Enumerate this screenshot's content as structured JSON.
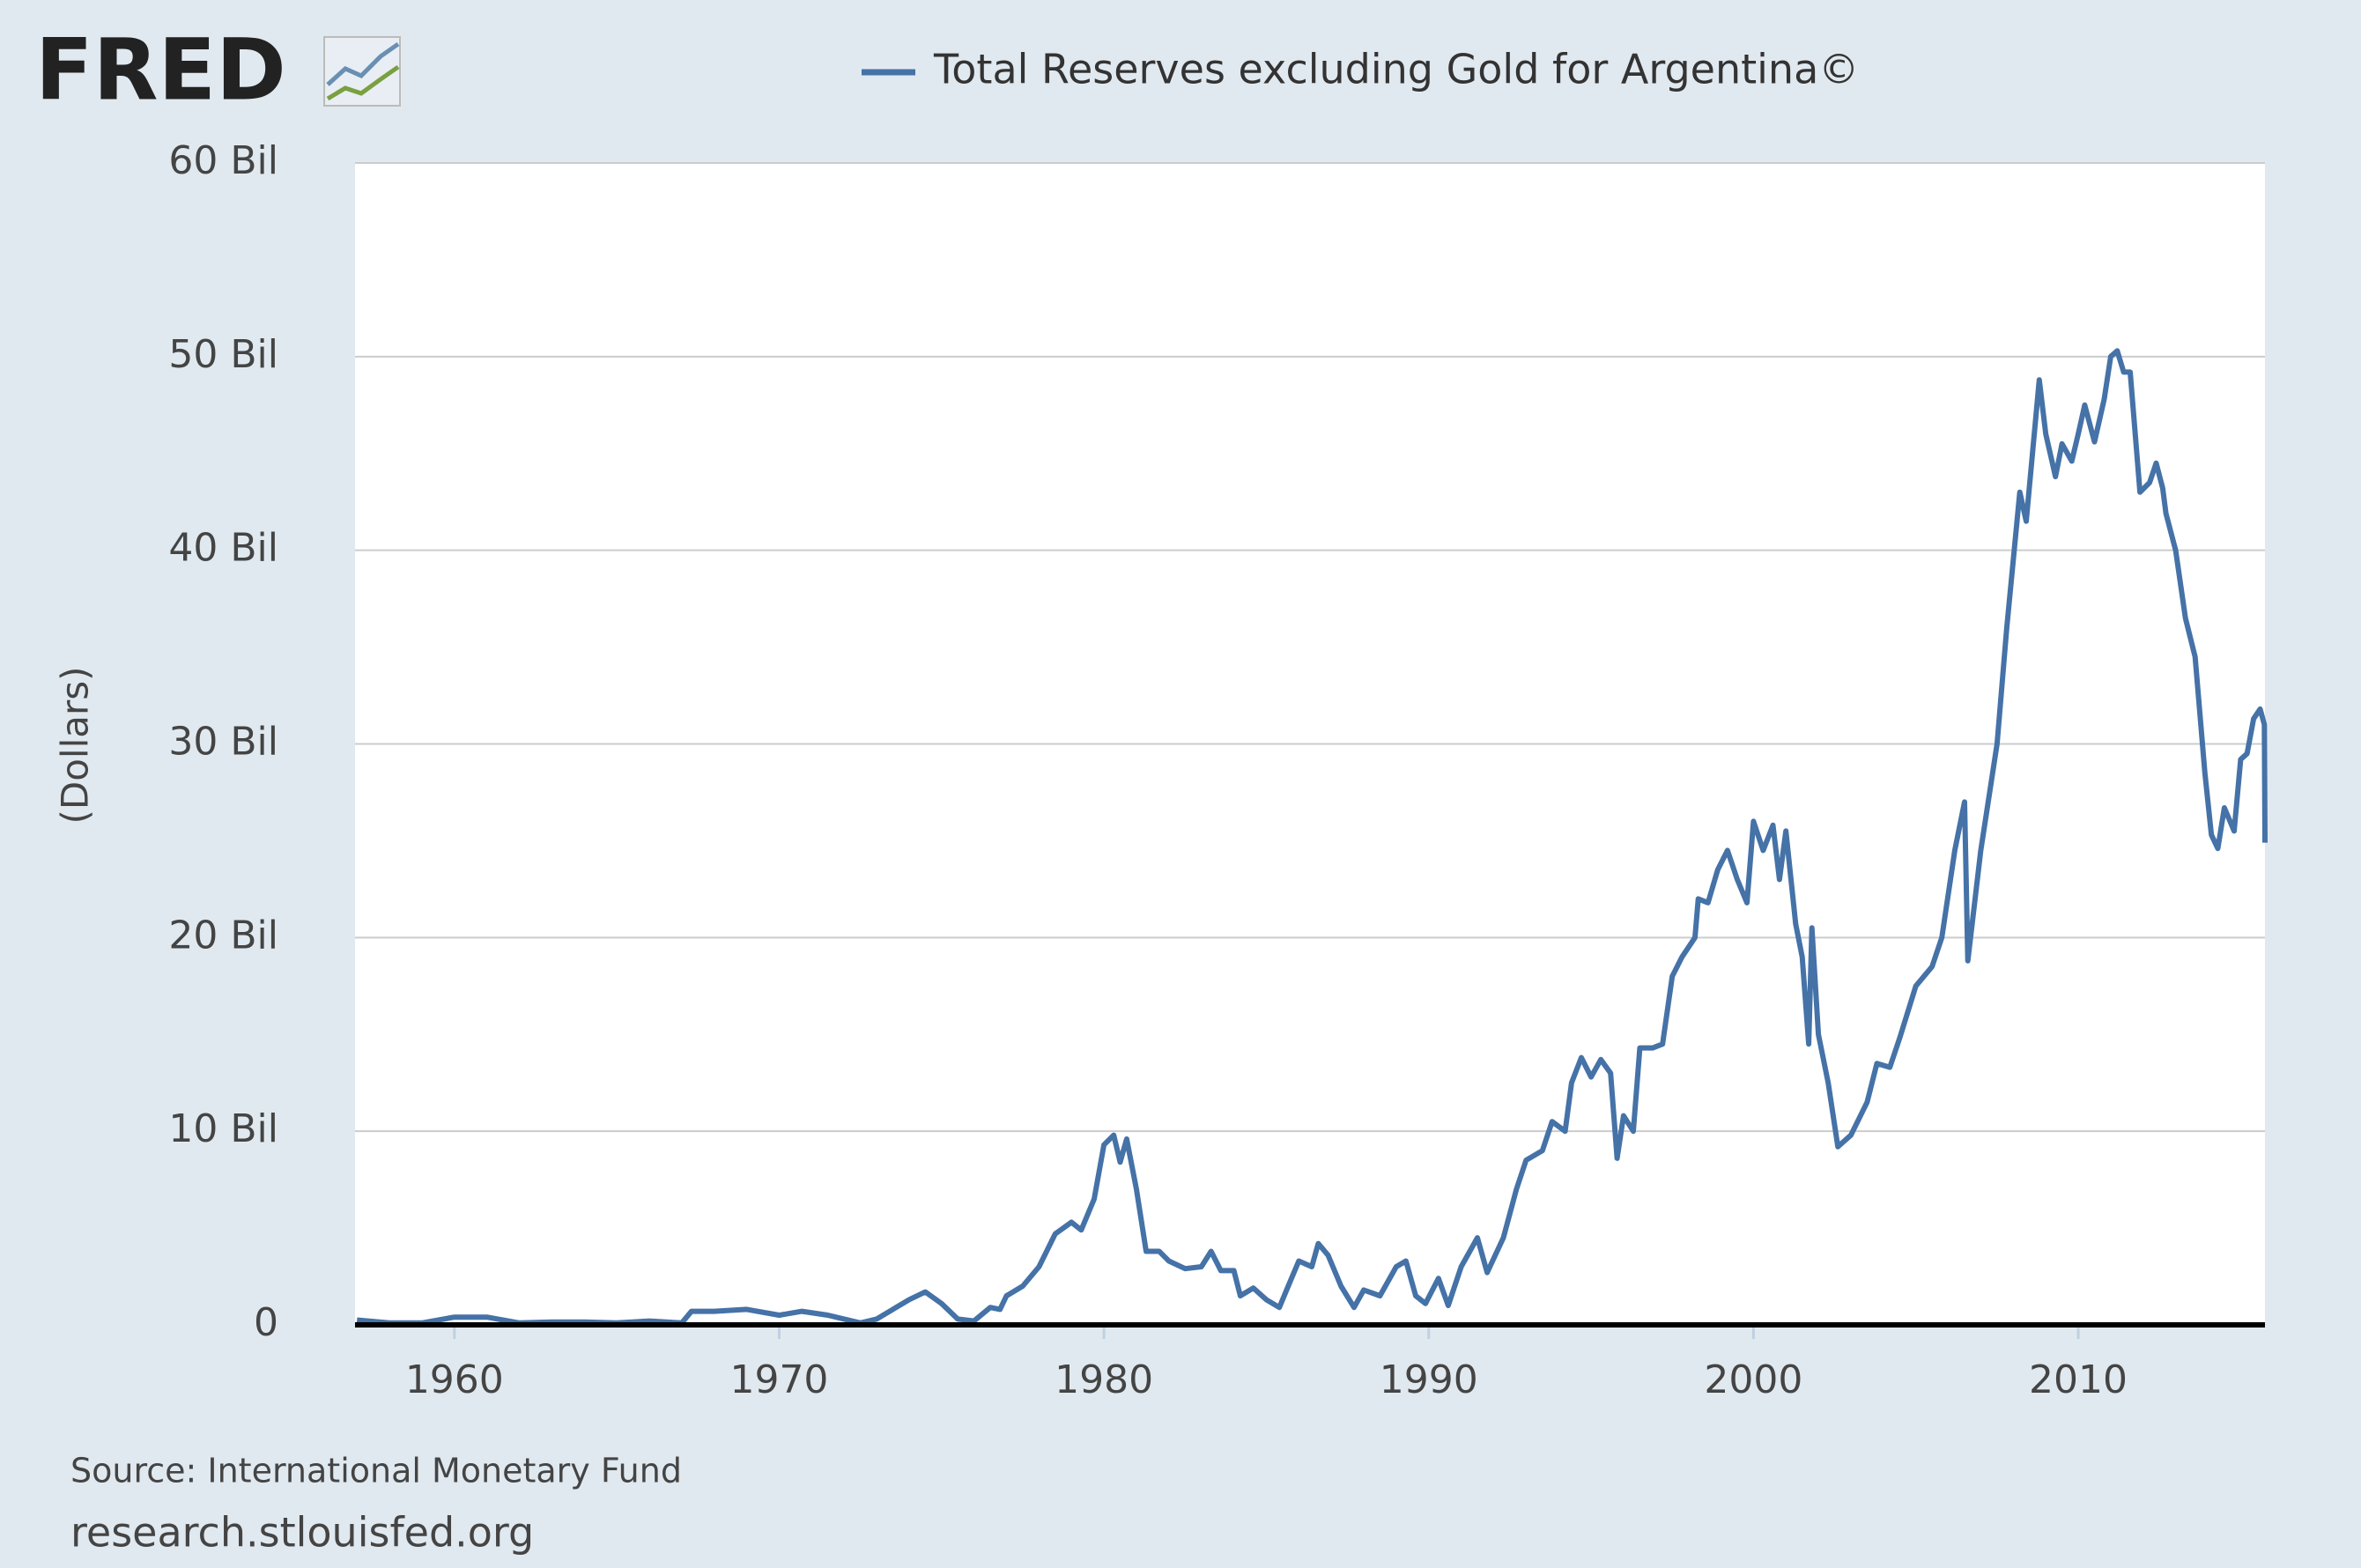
{
  "logo": "FRED",
  "chart_data": {
    "type": "line",
    "y_label": "(Dollars)",
    "source": "Source: International Monetary Fund",
    "url": "research.stlouisfed.org",
    "xlim": [
      1956.94,
      2015.75
    ],
    "xticks": [
      1960,
      1970,
      1980,
      1990,
      2000,
      2010
    ],
    "ylim": [
      0,
      60
    ],
    "yticks": [
      0,
      {
        "value": 10,
        "label": "10 Bil"
      },
      {
        "value": 20,
        "label": "20 Bil"
      },
      {
        "value": 30,
        "label": "30 Bil"
      },
      {
        "value": 40,
        "label": "40 Bil"
      },
      {
        "value": 50,
        "label": "50 Bil"
      },
      {
        "value": 60,
        "label": "60 Bil"
      }
    ],
    "grid": true,
    "x": [
      1957,
      1958,
      1959,
      1960,
      1961,
      1962,
      1963,
      1964,
      1965,
      1966,
      1967,
      1967.3,
      1968,
      1969,
      1970,
      1970.7,
      1971.5,
      1972,
      1972.5,
      1973,
      1973.5,
      1974,
      1974.5,
      1975,
      1975.5,
      1976,
      1976.5,
      1976.8,
      1977,
      1977.5,
      1978,
      1978.5,
      1979,
      1979.3,
      1979.7,
      1980,
      1980.3,
      1980.5,
      1980.7,
      1981,
      1981.3,
      1981.7,
      1982,
      1982.5,
      1983,
      1983.3,
      1983.6,
      1984,
      1984.2,
      1984.6,
      1985,
      1985.4,
      1985.7,
      1986,
      1986.4,
      1986.6,
      1986.9,
      1987.3,
      1987.7,
      1988,
      1988.5,
      1989,
      1989.3,
      1989.6,
      1989.9,
      1990.3,
      1990.6,
      1991,
      1991.5,
      1991.8,
      1992.3,
      1992.7,
      1993,
      1993.5,
      1993.8,
      1994.2,
      1994.4,
      1994.7,
      1995,
      1995.3,
      1995.6,
      1995.8,
      1996,
      1996.3,
      1996.5,
      1996.9,
      1997.2,
      1997.5,
      1997.8,
      1998.2,
      1998.3,
      1998.6,
      1998.9,
      1999.2,
      1999.5,
      1999.8,
      2000,
      2000.3,
      2000.6,
      2000.8,
      2001,
      2001.3,
      2001.5,
      2001.7,
      2001.8,
      2002,
      2002.3,
      2002.6,
      2003,
      2003.5,
      2003.8,
      2004.2,
      2004.5,
      2005,
      2005.5,
      2005.8,
      2006.2,
      2006.5,
      2006.6,
      2007,
      2007.5,
      2007.8,
      2008.2,
      2008.4,
      2008.8,
      2009,
      2009.3,
      2009.5,
      2009.8,
      2010,
      2010.2,
      2010.5,
      2010.8,
      2011,
      2011.2,
      2011.4,
      2011.6,
      2011.9,
      2012.2,
      2012.4,
      2012.6,
      2012.7,
      2013,
      2013.3,
      2013.6,
      2013.9,
      2014.1,
      2014.3,
      2014.5,
      2014.8,
      2015,
      2015.2,
      2015.4,
      2015.6,
      2015.73,
      2015.75
    ],
    "series": [
      {
        "name": "Total Reserves excluding Gold for Argentina©",
        "color": "#4572a7",
        "values": [
          0.25,
          0.1,
          0.1,
          0.4,
          0.4,
          0.1,
          0.15,
          0.15,
          0.1,
          0.2,
          0.1,
          0.7,
          0.7,
          0.8,
          0.5,
          0.7,
          0.5,
          0.3,
          0.1,
          0.3,
          0.8,
          1.3,
          1.7,
          1.1,
          0.3,
          0.2,
          0.9,
          0.8,
          1.5,
          2.0,
          3.0,
          4.7,
          5.3,
          4.9,
          6.5,
          9.3,
          9.8,
          8.4,
          9.6,
          7.0,
          3.8,
          3.8,
          3.3,
          2.9,
          3.0,
          3.8,
          2.8,
          2.8,
          1.5,
          1.9,
          1.3,
          0.9,
          2.1,
          3.3,
          3.0,
          4.2,
          3.6,
          2.0,
          0.9,
          1.8,
          1.5,
          3.0,
          3.3,
          1.5,
          1.1,
          2.4,
          1.0,
          3.0,
          4.5,
          2.7,
          4.5,
          7.0,
          8.5,
          9.0,
          10.5,
          10.0,
          12.5,
          13.8,
          12.8,
          13.7,
          13.0,
          8.6,
          10.8,
          10.0,
          14.3,
          14.3,
          14.5,
          18.0,
          19.0,
          20.0,
          22.0,
          21.8,
          23.5,
          24.5,
          23.0,
          21.8,
          26.0,
          24.5,
          25.8,
          23.0,
          25.5,
          20.7,
          19.0,
          14.5,
          20.5,
          15.0,
          12.5,
          9.2,
          9.8,
          11.5,
          13.5,
          13.3,
          14.8,
          17.5,
          18.5,
          20.0,
          24.5,
          27.0,
          18.8,
          24.5,
          30.0,
          36.0,
          43.0,
          41.5,
          48.8,
          46.0,
          43.8,
          45.5,
          44.6,
          46.0,
          47.5,
          45.6,
          47.8,
          50.0,
          50.3,
          49.2,
          49.2,
          43.0,
          43.5,
          44.5,
          43.2,
          41.9,
          40.0,
          36.5,
          34.5,
          28.5,
          25.3,
          24.6,
          26.7,
          25.5,
          29.2,
          29.5,
          31.3,
          31.8,
          31.0,
          24.9
        ]
      }
    ]
  }
}
